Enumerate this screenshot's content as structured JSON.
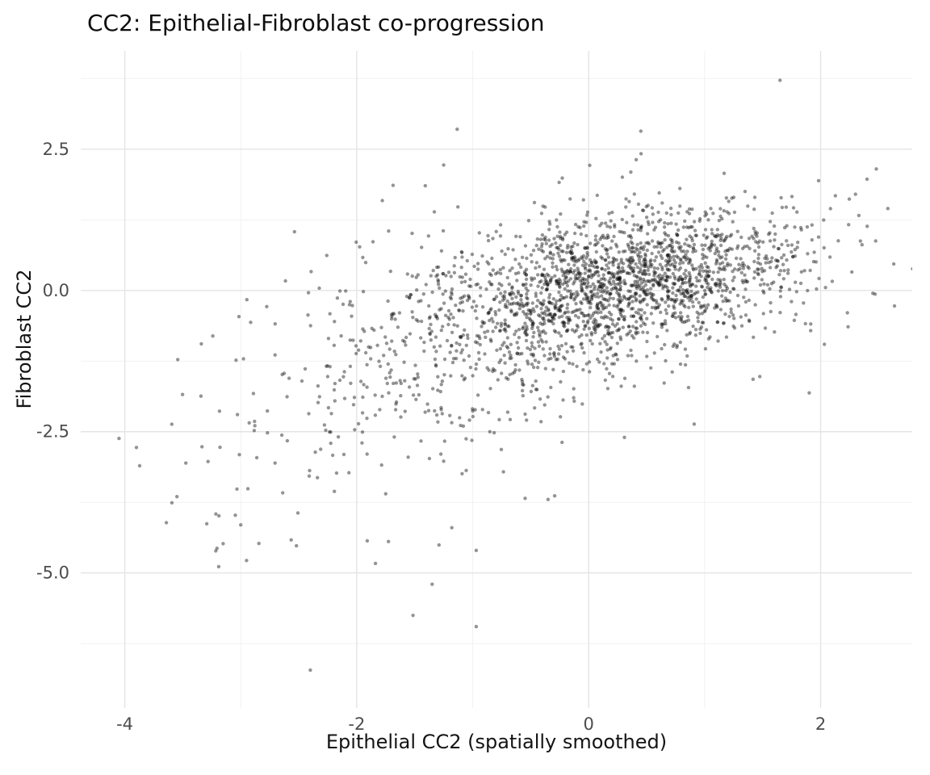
{
  "chart_data": {
    "type": "scatter",
    "title": "CC2: Epithelial-Fibroblast co-progression",
    "xlabel": "Epithelial CC2 (spatially smoothed)",
    "ylabel": "Fibroblast CC2",
    "xlim": [
      -4.38,
      2.79
    ],
    "ylim": [
      -7.39,
      4.24
    ],
    "x_ticks": [
      {
        "value": -4,
        "label": "-4"
      },
      {
        "value": -2,
        "label": "-2"
      },
      {
        "value": 0,
        "label": "0"
      },
      {
        "value": 2,
        "label": "2"
      }
    ],
    "y_ticks": [
      {
        "value": 2.5,
        "label": "2.5"
      },
      {
        "value": 0.0,
        "label": "0.0"
      },
      {
        "value": -2.5,
        "label": "-2.5"
      },
      {
        "value": -5.0,
        "label": "-5.0"
      }
    ],
    "x_minor_ticks": [
      -3,
      -1,
      1
    ],
    "y_minor_ticks": [
      3.75,
      1.25,
      -1.25,
      -3.75,
      -6.25
    ],
    "grid": {
      "background": "#ffffff",
      "major_color": "#e4e4e4",
      "minor_color": "#f1f1f1",
      "legend": "none"
    },
    "style": {
      "tick_label_color": "#4d4d4d",
      "title_color": "#0d0d0d",
      "axis_title_color": "#141414"
    },
    "points": {
      "n": 2350,
      "marker": {
        "color": "#000000",
        "opacity": 0.42,
        "radius": 2.2
      },
      "generator": {
        "seed": 42,
        "mixture": [
          {
            "weight": 0.62,
            "mean": [
              0.35,
              0.15
            ],
            "sd": [
              0.72,
              0.62
            ],
            "rho": 0.35
          },
          {
            "weight": 0.28,
            "mean": [
              -0.35,
              -0.35
            ],
            "sd": [
              1.05,
              0.95
            ],
            "rho": 0.45
          },
          {
            "weight": 0.1,
            "mean": [
              -1.7,
              -1.6
            ],
            "sd": [
              1.0,
              1.5
            ],
            "rho": 0.45
          }
        ]
      },
      "notable_points": [
        [
          1.65,
          3.72
        ],
        [
          0.45,
          2.82
        ],
        [
          -1.25,
          2.22
        ],
        [
          2.48,
          2.15
        ],
        [
          2.4,
          1.97
        ],
        [
          -2.4,
          -6.72
        ],
        [
          -0.97,
          -5.95
        ],
        [
          -1.35,
          -5.2
        ],
        [
          -2.95,
          -4.78
        ],
        [
          -2.52,
          -4.52
        ],
        [
          -1.18,
          -4.2
        ],
        [
          -3.0,
          -4.15
        ],
        [
          -3.55,
          -3.65
        ],
        [
          -1.75,
          -3.6
        ],
        [
          -0.35,
          -3.7
        ],
        [
          -4.05,
          -2.62
        ],
        [
          -3.9,
          -2.78
        ],
        [
          2.45,
          -0.05
        ],
        [
          2.58,
          1.45
        ]
      ]
    }
  }
}
